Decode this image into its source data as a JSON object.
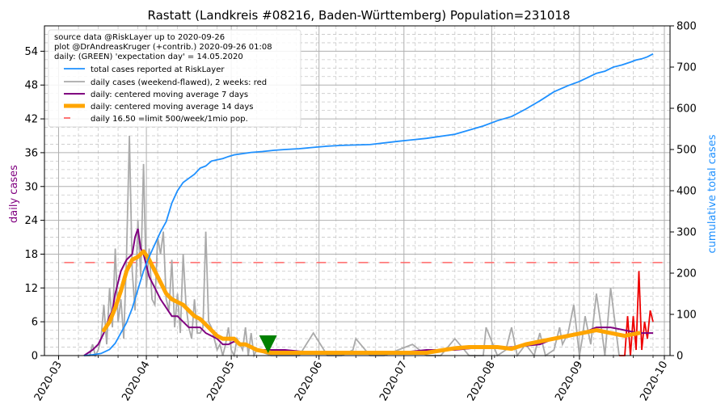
{
  "chart_data": {
    "type": "line",
    "title": "Rastatt (Landkreis #08216, Baden-Württemberg) Population=231018",
    "ylabel_left": "daily cases",
    "ylabel_right": "cumulative total cases",
    "x_ticks": [
      "2020-03",
      "2020-04",
      "2020-05",
      "2020-06",
      "2020-07",
      "2020-08",
      "2020-09",
      "2020-10"
    ],
    "y_left_ticks": [
      0,
      6,
      12,
      18,
      24,
      30,
      36,
      42,
      48,
      54
    ],
    "y_right_ticks": [
      0,
      100,
      200,
      300,
      400,
      500,
      600,
      700,
      800
    ],
    "ylim_left": [
      0,
      58.5
    ],
    "ylim_right": [
      0,
      800
    ],
    "xlim_days": [
      -5,
      216
    ],
    "info_lines": [
      "source data @RiskLayer up to 2020-09-26",
      "plot @DrAndreasKruger (+contrib.) 2020-09-26 01:08",
      "daily: (GREEN) 'expectation day' = 14.05.2020"
    ],
    "legend": [
      {
        "label": "total cases reported at RiskLayer",
        "color": "#1e90ff",
        "style": "line"
      },
      {
        "label": "daily cases (weekend-flawed), 2 weeks: red",
        "color": "#aaaaaa",
        "style": "line"
      },
      {
        "label": "daily: centered moving average 7 days",
        "color": "#800080",
        "style": "line"
      },
      {
        "label": "daily: centered moving average 14 days",
        "color": "#ffa500",
        "style": "thick"
      },
      {
        "label": "daily 16.50 =limit 500/week/1mio pop.",
        "color": "#ff6666",
        "style": "dashed"
      }
    ],
    "limit_line": 16.5,
    "expectation_day": 74,
    "series": {
      "cumulative": {
        "name": "total cases reported at RiskLayer",
        "color": "#1e90ff",
        "x": [
          9,
          12,
          15,
          18,
          20,
          22,
          24,
          26,
          28,
          30,
          32,
          34,
          36,
          38,
          40,
          42,
          44,
          46,
          48,
          50,
          52,
          54,
          56,
          58,
          60,
          62,
          65,
          68,
          72,
          76,
          80,
          85,
          90,
          95,
          100,
          110,
          120,
          130,
          140,
          150,
          155,
          160,
          165,
          170,
          175,
          180,
          184,
          187,
          190,
          193,
          196,
          199,
          202,
          204,
          206,
          208,
          210
        ],
        "y": [
          0,
          2,
          5,
          15,
          30,
          55,
          80,
          115,
          160,
          205,
          240,
          270,
          300,
          325,
          370,
          400,
          420,
          430,
          440,
          455,
          460,
          472,
          475,
          478,
          483,
          487,
          490,
          493,
          495,
          498,
          500,
          502,
          505,
          508,
          510,
          512,
          520,
          527,
          537,
          557,
          570,
          580,
          598,
          618,
          640,
          655,
          665,
          675,
          685,
          690,
          700,
          705,
          712,
          717,
          720,
          725,
          732
        ]
      },
      "daily": {
        "name": "daily cases (weekend-flawed), 2 weeks: red",
        "color": "#aaaaaa",
        "recent_color": "#ff0000",
        "x": [
          9,
          11,
          12,
          13,
          14,
          15,
          16,
          17,
          18,
          19,
          20,
          21,
          22,
          23,
          24,
          25,
          26,
          27,
          28,
          29,
          30,
          31,
          32,
          33,
          34,
          35,
          36,
          37,
          38,
          39,
          40,
          41,
          42,
          43,
          44,
          45,
          46,
          47,
          48,
          49,
          50,
          51,
          52,
          53,
          54,
          55,
          56,
          57,
          58,
          59,
          60,
          61,
          62,
          63,
          64,
          65,
          66,
          67,
          68,
          69,
          70,
          75,
          80,
          85,
          90,
          95,
          100,
          104,
          105,
          110,
          115,
          120,
          125,
          130,
          135,
          140,
          145,
          150,
          151,
          155,
          158,
          160,
          162,
          165,
          168,
          170,
          172,
          175,
          177,
          178,
          180,
          182,
          184,
          185,
          186,
          188,
          190,
          192,
          193,
          195,
          198,
          200,
          201,
          202,
          203,
          204,
          205,
          206,
          207,
          208,
          209,
          210
        ],
        "y": [
          0,
          0,
          2,
          0,
          1,
          3,
          9,
          2,
          12,
          5,
          19,
          6,
          10,
          3,
          18,
          39,
          15,
          8,
          24,
          14,
          34,
          12,
          19,
          10,
          9,
          21,
          18,
          22,
          10,
          8,
          17,
          5,
          11,
          4,
          18,
          9,
          5,
          3,
          10,
          4,
          4,
          5,
          22,
          6,
          5,
          3,
          1,
          2,
          0,
          2,
          5,
          1,
          0,
          3,
          2,
          1,
          5,
          0,
          4,
          0,
          1,
          0,
          0,
          0,
          4,
          0,
          0,
          1,
          3,
          0,
          0,
          1,
          2,
          0,
          0,
          3,
          0,
          0,
          5,
          0,
          1,
          5,
          0,
          2,
          0,
          4,
          0,
          1,
          5,
          2,
          4,
          9,
          0,
          3,
          7,
          2,
          11,
          4,
          0,
          12,
          0,
          0,
          7,
          0,
          7,
          1,
          15,
          1,
          6,
          3,
          8,
          6
        ]
      },
      "ma7": {
        "name": "daily: centered moving average 7 days",
        "color": "#800080",
        "x": [
          9,
          12,
          14,
          16,
          18,
          19,
          20,
          22,
          24,
          26,
          27,
          28,
          29,
          30,
          31,
          32,
          34,
          36,
          38,
          40,
          42,
          44,
          46,
          48,
          50,
          52,
          54,
          56,
          58,
          60,
          62,
          65,
          70,
          80,
          90,
          100,
          110,
          120,
          130,
          140,
          150,
          160,
          170,
          175,
          180,
          185,
          190,
          195,
          200,
          205,
          210
        ],
        "y": [
          0,
          1,
          2,
          4,
          7,
          8,
          11,
          15,
          17,
          18,
          21,
          22.5,
          19,
          18,
          16,
          14,
          12,
          10,
          8.5,
          7,
          7,
          6,
          5,
          5,
          5,
          4,
          3.5,
          3,
          2,
          2,
          2.5,
          2,
          1,
          1,
          0.5,
          0.5,
          0.5,
          0.5,
          1,
          1,
          1.5,
          1.5,
          2,
          3,
          3.5,
          4,
          5,
          5,
          4.5,
          4,
          4
        ]
      },
      "ma14": {
        "name": "daily: centered moving average 14 days",
        "color": "#ffa500",
        "x": [
          16,
          18,
          20,
          22,
          24,
          26,
          28,
          30,
          32,
          34,
          36,
          38,
          40,
          42,
          44,
          46,
          48,
          50,
          52,
          54,
          56,
          58,
          60,
          62,
          64,
          66,
          68,
          70,
          75,
          80,
          90,
          100,
          110,
          120,
          130,
          140,
          145,
          150,
          155,
          160,
          165,
          170,
          175,
          180,
          185,
          190,
          195,
          200,
          205
        ],
        "y": [
          4.5,
          6,
          8.5,
          11.5,
          15,
          17,
          17.5,
          18.5,
          17,
          15,
          13,
          11,
          10,
          9.5,
          9,
          8,
          7,
          6.5,
          5.5,
          4.5,
          3.5,
          3,
          3,
          3,
          2,
          2,
          1.5,
          1,
          0.5,
          0.5,
          0.5,
          0.5,
          0.5,
          0.5,
          0.5,
          1.3,
          1.5,
          1.5,
          1.5,
          1.2,
          2,
          2.5,
          3,
          3.5,
          4,
          4.5,
          4,
          3.5,
          4
        ]
      }
    }
  }
}
